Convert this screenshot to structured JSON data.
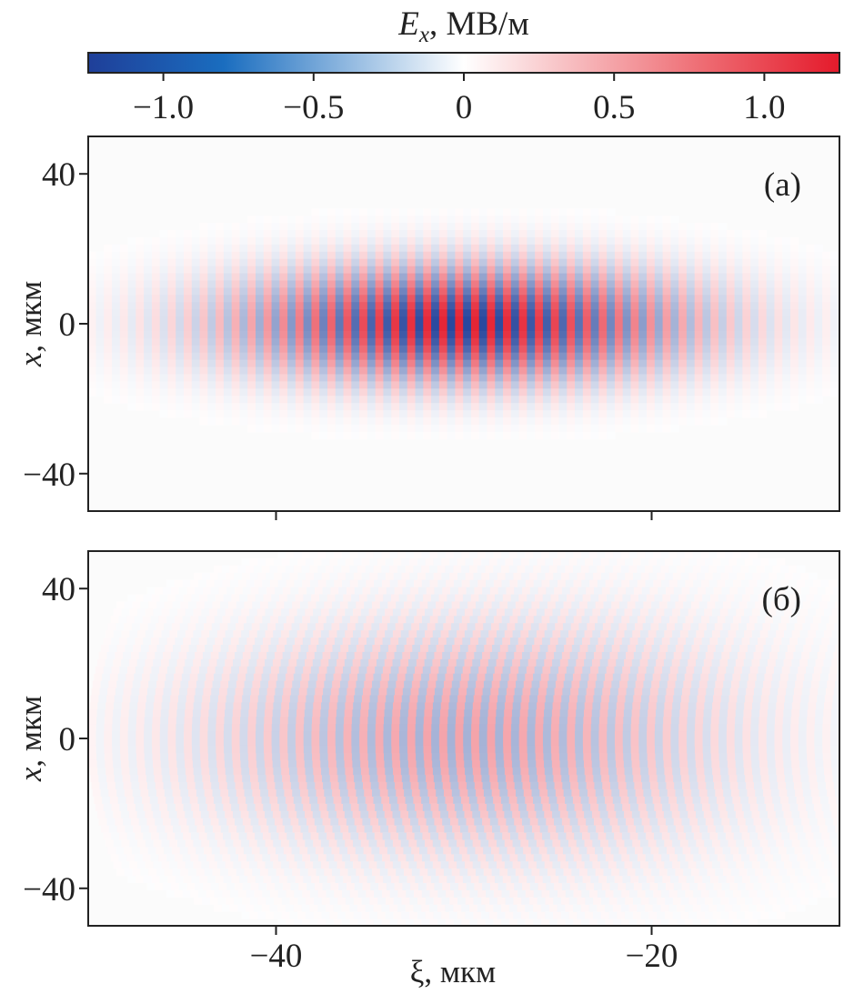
{
  "chart_data": {
    "type": "heatmap",
    "colorbar": {
      "title_italic": "E",
      "title_sub": "x",
      "title_rest": ", МВ/м",
      "range": [
        -1.25,
        1.25
      ],
      "colormap": "blue-white-red",
      "colors": {
        "neg": "#1f3f99",
        "mid": "#ffffff",
        "pos": "#e41a2b"
      },
      "ticks": [
        -1.0,
        -0.5,
        0,
        0.5,
        1.0
      ],
      "tick_labels": [
        "−1.0",
        "−0.5",
        "0",
        "0.5",
        "1.0"
      ]
    },
    "xlabel": "ξ, мкм",
    "xlim": [
      -50,
      -10
    ],
    "xticks": [
      -40,
      -20
    ],
    "xtick_labels": [
      "−40",
      "−20"
    ],
    "panels": [
      {
        "label": "(а)",
        "ylabel_italic": "x",
        "ylabel_rest": ", мкм",
        "ylim": [
          -50,
          50
        ],
        "yticks": [
          40,
          0,
          -40
        ],
        "ytick_labels": [
          "40",
          "0",
          "−40"
        ],
        "field": {
          "peak_amplitude": 1.2,
          "center_xi": -30,
          "longitudinal_halfwidth": 12,
          "transverse_halfwidth": 15,
          "wavelength": 0.85,
          "front_curvature": 0
        }
      },
      {
        "label": "(б)",
        "ylabel_italic": "x",
        "ylabel_rest": ", мкм",
        "ylim": [
          -50,
          50
        ],
        "yticks": [
          40,
          0,
          -40
        ],
        "ytick_labels": [
          "40",
          "0",
          "−40"
        ],
        "field": {
          "peak_amplitude": 0.5,
          "center_xi": -30,
          "longitudinal_halfwidth": 14,
          "transverse_halfwidth": 30,
          "wavelength": 0.85,
          "front_curvature": 0.0012
        }
      }
    ]
  }
}
